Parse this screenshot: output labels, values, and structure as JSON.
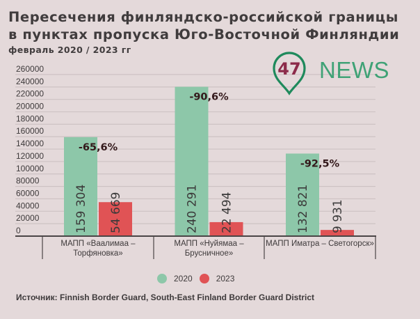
{
  "header": {
    "title_line1": "Пересечения финляндско-российской границы",
    "title_line2": "в пунктах пропуска Юго-Восточной Финляндии",
    "subtitle": "февраль 2020 / 2023 гг"
  },
  "logo": {
    "number": "47",
    "text": "NEWS",
    "pin_color": "#1f8a5c",
    "number_color": "#8c2b4a",
    "text_color": "#3fa276"
  },
  "legend": {
    "items": [
      {
        "label": "2020",
        "color": "#8dc7a9"
      },
      {
        "label": "2023",
        "color": "#e05355"
      }
    ]
  },
  "source": "Источник: Finnish Border Guard, South-East Finland Border Guard District",
  "chart_data": {
    "type": "bar",
    "title": "Пересечения финляндско-российской границы в пунктах пропуска Юго-Восточной Финляндии",
    "subtitle": "февраль 2020 / 2023 гг",
    "xlabel": "",
    "ylabel": "",
    "categories": [
      [
        "МАПП «Ваалимаа –",
        "Торфяновка»"
      ],
      [
        "МАПП «Нуйямаа –",
        "Брусничное»"
      ],
      [
        "МАПП Иматра – Светогорск»"
      ]
    ],
    "series": [
      {
        "name": "2020",
        "color": "#8dc7a9",
        "values": [
          159304,
          240291,
          132821
        ],
        "labels": [
          "159 304",
          "240 291",
          "132 821"
        ]
      },
      {
        "name": "2023",
        "color": "#e05355",
        "values": [
          54669,
          22494,
          9931
        ],
        "labels": [
          "54 669",
          "22 494",
          "9 931"
        ]
      }
    ],
    "annotations": [
      "-65,6%",
      "-90,6%",
      "-92,5%"
    ],
    "yticks": [
      0,
      20000,
      40000,
      60000,
      80000,
      100000,
      120000,
      140000,
      160000,
      180000,
      200000,
      220000,
      240000,
      260000
    ],
    "ylim": [
      0,
      260000
    ],
    "grid": true,
    "legend_position": "bottom-center"
  }
}
